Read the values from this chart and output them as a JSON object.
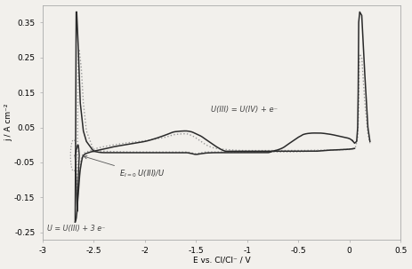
{
  "xlim": [
    -3.0,
    0.5
  ],
  "ylim": [
    -0.27,
    0.4
  ],
  "xlabel": "E vs. Cl/Cl⁻ / V",
  "ylabel": "j / A cm⁻²",
  "xticks": [
    -3,
    -2.5,
    -2,
    -1.5,
    -1,
    -0.5,
    0,
    0.5
  ],
  "yticks": [
    -0.25,
    -0.15,
    -0.05,
    0.05,
    0.15,
    0.25,
    0.35
  ],
  "annotation1": "U(III) = U(IV) + e⁻",
  "annotation2_tex": "$E_{I=0}$ U(III)/U",
  "annotation3": "U = U(III) + 3 e⁻",
  "grey_color": "#999999",
  "black_color": "#2a2a2a",
  "dark_grey_color": "#555555",
  "bg_color": "#f2f0ec"
}
